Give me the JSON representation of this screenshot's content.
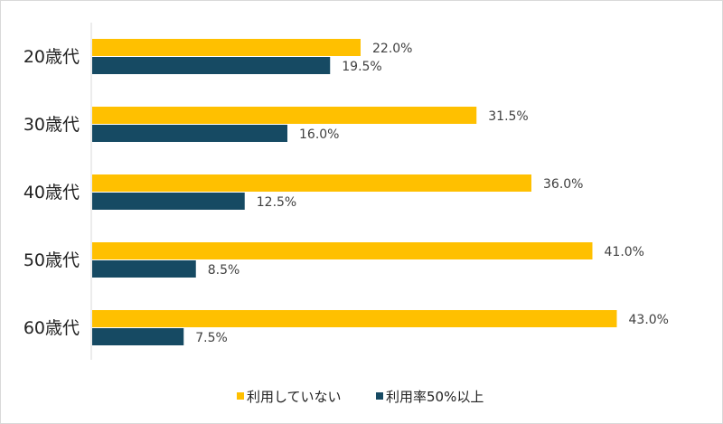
{
  "chart_data": {
    "type": "bar",
    "orientation": "horizontal",
    "categories": [
      "20歳代",
      "30歳代",
      "40歳代",
      "50歳代",
      "60歳代"
    ],
    "series": [
      {
        "name": "利用していない",
        "values": [
          22.0,
          31.5,
          36.0,
          41.0,
          43.0
        ],
        "labels": [
          "22.0%",
          "31.5%",
          "36.0%",
          "41.0%",
          "43.0%"
        ],
        "color": "#FFC000"
      },
      {
        "name": "利用率50%以上",
        "values": [
          19.5,
          16.0,
          12.5,
          8.5,
          7.5
        ],
        "labels": [
          "19.5%",
          "16.0%",
          "12.5%",
          "8.5%",
          "7.5%"
        ],
        "color": "#164A63"
      }
    ],
    "xlim": [
      0,
      50
    ],
    "unit": "%",
    "grid": false,
    "legend_position": "bottom"
  }
}
